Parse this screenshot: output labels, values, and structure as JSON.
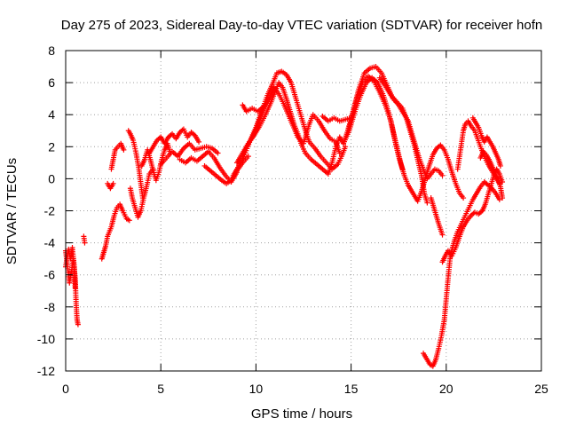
{
  "chart_data": {
    "type": "scatter",
    "title": "Day 275 of 2023, Sidereal Day-to-day VTEC variation (SDTVAR) for receiver hofn",
    "xlabel": "GPS time / hours",
    "ylabel": "SDTVAR / TECUs",
    "xlim": [
      0,
      25
    ],
    "ylim": [
      -12,
      8
    ],
    "x_ticks": [
      "0",
      "5",
      "10",
      "15",
      "20",
      "25"
    ],
    "y_ticks": [
      "-12",
      "-10",
      "-8",
      "-6",
      "-4",
      "-2",
      "0",
      "2",
      "4",
      "6",
      "8"
    ],
    "x_tick_values": [
      0,
      5,
      10,
      15,
      20,
      25
    ],
    "y_tick_values": [
      -12,
      -10,
      -8,
      -6,
      -4,
      -2,
      0,
      2,
      4,
      6,
      8
    ],
    "grid": true,
    "marker": "+",
    "series_color": "#ff0000",
    "tracks": [
      [
        [
          0.0,
          -4.5
        ],
        [
          0.1,
          -5.5
        ],
        [
          0.2,
          -6.5
        ],
        [
          0.3,
          -5.8
        ],
        [
          0.4,
          -5.0
        ],
        [
          0.5,
          -6.2
        ],
        [
          0.55,
          -7.8
        ],
        [
          0.6,
          -8.8
        ],
        [
          0.65,
          -9.1
        ]
      ],
      [
        [
          0.0,
          -5.5
        ],
        [
          0.15,
          -4.4
        ],
        [
          0.25,
          -5.0
        ],
        [
          0.35,
          -4.3
        ],
        [
          0.45,
          -5.5
        ],
        [
          0.5,
          -6.8
        ]
      ],
      [
        [
          0.95,
          -3.6
        ],
        [
          1.0,
          -4.0
        ]
      ],
      [
        [
          1.9,
          -5.0
        ],
        [
          2.0,
          -4.6
        ],
        [
          2.1,
          -4.2
        ],
        [
          2.2,
          -3.6
        ],
        [
          2.4,
          -3.0
        ],
        [
          2.55,
          -2.3
        ],
        [
          2.7,
          -1.8
        ],
        [
          2.85,
          -1.6
        ],
        [
          3.0,
          -2.0
        ],
        [
          3.2,
          -2.5
        ],
        [
          3.35,
          -2.6
        ]
      ],
      [
        [
          2.4,
          0.6
        ],
        [
          2.5,
          1.2
        ],
        [
          2.6,
          1.8
        ],
        [
          2.75,
          2.0
        ],
        [
          2.9,
          2.2
        ],
        [
          3.05,
          1.8
        ]
      ],
      [
        [
          2.2,
          -0.3
        ],
        [
          2.35,
          -0.6
        ],
        [
          2.5,
          -0.3
        ]
      ],
      [
        [
          3.3,
          3.0
        ],
        [
          3.4,
          2.8
        ],
        [
          3.55,
          2.4
        ],
        [
          3.7,
          1.6
        ],
        [
          3.85,
          0.6
        ],
        [
          3.95,
          -0.3
        ],
        [
          4.05,
          -1.2
        ]
      ],
      [
        [
          3.4,
          -0.6
        ],
        [
          3.5,
          -1.2
        ],
        [
          3.65,
          -1.8
        ],
        [
          3.8,
          -2.4
        ],
        [
          3.95,
          -2.0
        ],
        [
          4.1,
          -1.2
        ],
        [
          4.25,
          -0.5
        ],
        [
          4.4,
          0.3
        ],
        [
          4.6,
          0.6
        ]
      ],
      [
        [
          4.0,
          0.8
        ],
        [
          4.15,
          1.2
        ],
        [
          4.3,
          1.8
        ],
        [
          4.45,
          1.2
        ],
        [
          4.6,
          0.5
        ],
        [
          4.75,
          -0.1
        ],
        [
          4.9,
          0.4
        ],
        [
          5.05,
          1.2
        ],
        [
          5.2,
          1.8
        ],
        [
          5.35,
          2.2
        ],
        [
          5.5,
          1.6
        ]
      ],
      [
        [
          4.4,
          1.6
        ],
        [
          4.6,
          2.0
        ],
        [
          4.8,
          2.4
        ],
        [
          5.0,
          2.6
        ],
        [
          5.2,
          2.2
        ],
        [
          5.4,
          2.6
        ],
        [
          5.6,
          2.8
        ],
        [
          5.8,
          2.5
        ],
        [
          6.0,
          2.9
        ],
        [
          6.2,
          3.1
        ],
        [
          6.4,
          2.6
        ],
        [
          6.6,
          2.9
        ],
        [
          6.8,
          2.7
        ],
        [
          7.0,
          2.3
        ]
      ],
      [
        [
          5.0,
          0.9
        ],
        [
          5.3,
          1.3
        ],
        [
          5.6,
          1.7
        ],
        [
          5.9,
          1.4
        ],
        [
          6.2,
          1.9
        ],
        [
          6.5,
          2.2
        ],
        [
          6.8,
          1.8
        ],
        [
          7.1,
          1.9
        ],
        [
          7.4,
          2.0
        ],
        [
          7.7,
          1.9
        ],
        [
          8.0,
          1.6
        ]
      ],
      [
        [
          6.0,
          1.2
        ],
        [
          6.3,
          1.0
        ],
        [
          6.6,
          1.3
        ],
        [
          6.9,
          1.1
        ],
        [
          7.2,
          1.4
        ],
        [
          7.5,
          1.7
        ],
        [
          7.8,
          1.3
        ],
        [
          8.1,
          0.7
        ],
        [
          8.4,
          0.2
        ],
        [
          8.7,
          -0.2
        ],
        [
          9.0,
          0.4
        ]
      ],
      [
        [
          7.3,
          0.8
        ],
        [
          7.6,
          0.5
        ],
        [
          7.9,
          0.2
        ],
        [
          8.2,
          -0.1
        ],
        [
          8.45,
          -0.3
        ],
        [
          8.7,
          -0.1
        ],
        [
          9.0,
          0.5
        ],
        [
          9.3,
          1.0
        ],
        [
          9.6,
          1.4
        ]
      ],
      [
        [
          9.0,
          1.0
        ],
        [
          9.3,
          1.6
        ],
        [
          9.6,
          2.2
        ],
        [
          9.9,
          2.7
        ],
        [
          10.2,
          3.3
        ],
        [
          10.5,
          4.0
        ],
        [
          10.8,
          4.8
        ],
        [
          11.0,
          5.4
        ],
        [
          11.2,
          6.0
        ],
        [
          11.4,
          5.7
        ],
        [
          11.6,
          5.0
        ],
        [
          11.8,
          4.2
        ],
        [
          12.0,
          3.4
        ],
        [
          12.2,
          2.8
        ],
        [
          12.4,
          2.1
        ],
        [
          12.6,
          1.6
        ]
      ],
      [
        [
          8.8,
          0.2
        ],
        [
          9.1,
          0.8
        ],
        [
          9.4,
          1.5
        ],
        [
          9.7,
          2.4
        ],
        [
          10.0,
          3.2
        ],
        [
          10.3,
          4.2
        ],
        [
          10.6,
          5.2
        ],
        [
          10.9,
          6.0
        ],
        [
          11.1,
          6.6
        ],
        [
          11.35,
          6.7
        ],
        [
          11.6,
          6.5
        ],
        [
          11.85,
          6.0
        ],
        [
          12.1,
          5.0
        ],
        [
          12.35,
          4.0
        ],
        [
          12.6,
          3.0
        ],
        [
          12.8,
          2.3
        ]
      ],
      [
        [
          9.5,
          2.0
        ],
        [
          9.8,
          2.6
        ],
        [
          10.1,
          3.4
        ],
        [
          10.4,
          4.4
        ],
        [
          10.7,
          5.0
        ],
        [
          10.95,
          5.7
        ],
        [
          11.2,
          5.3
        ],
        [
          11.45,
          4.7
        ],
        [
          11.7,
          4.0
        ],
        [
          11.95,
          3.3
        ],
        [
          12.2,
          2.6
        ]
      ],
      [
        [
          9.3,
          4.6
        ],
        [
          9.5,
          4.2
        ],
        [
          9.8,
          4.4
        ],
        [
          10.1,
          4.2
        ],
        [
          10.4,
          4.5
        ],
        [
          10.6,
          4.8
        ]
      ],
      [
        [
          12.6,
          1.6
        ],
        [
          12.9,
          1.2
        ],
        [
          13.2,
          0.9
        ],
        [
          13.5,
          0.6
        ],
        [
          13.8,
          0.3
        ],
        [
          14.0,
          1.0
        ],
        [
          14.2,
          2.0
        ],
        [
          14.4,
          2.6
        ],
        [
          14.6,
          2.2
        ],
        [
          14.8,
          2.9
        ],
        [
          15.0,
          3.6
        ]
      ],
      [
        [
          12.8,
          2.3
        ],
        [
          13.1,
          1.9
        ],
        [
          13.4,
          1.4
        ],
        [
          13.7,
          1.0
        ],
        [
          14.0,
          0.6
        ],
        [
          14.3,
          0.9
        ],
        [
          14.5,
          1.4
        ],
        [
          14.7,
          2.0
        ]
      ],
      [
        [
          12.2,
          2.6
        ],
        [
          12.5,
          2.2
        ],
        [
          12.8,
          3.4
        ],
        [
          13.0,
          4.0
        ],
        [
          13.3,
          3.6
        ],
        [
          13.6,
          3.0
        ],
        [
          13.9,
          2.5
        ],
        [
          14.2,
          2.3
        ],
        [
          14.4,
          1.6
        ]
      ],
      [
        [
          13.5,
          3.9
        ],
        [
          13.8,
          3.6
        ],
        [
          14.1,
          3.8
        ],
        [
          14.4,
          3.6
        ],
        [
          14.7,
          3.7
        ],
        [
          15.0,
          3.8
        ]
      ],
      [
        [
          14.6,
          2.2
        ],
        [
          14.9,
          3.0
        ],
        [
          15.2,
          4.2
        ],
        [
          15.5,
          5.2
        ],
        [
          15.8,
          6.0
        ],
        [
          16.1,
          6.3
        ],
        [
          16.4,
          6.0
        ],
        [
          16.7,
          5.2
        ],
        [
          17.0,
          4.0
        ],
        [
          17.2,
          3.0
        ],
        [
          17.4,
          2.0
        ],
        [
          17.6,
          1.0
        ],
        [
          17.8,
          0.2
        ],
        [
          18.0,
          -0.4
        ]
      ],
      [
        [
          14.8,
          2.9
        ],
        [
          15.1,
          4.2
        ],
        [
          15.4,
          5.6
        ],
        [
          15.7,
          6.6
        ],
        [
          16.0,
          6.9
        ],
        [
          16.3,
          7.0
        ],
        [
          16.6,
          6.6
        ],
        [
          16.9,
          5.8
        ],
        [
          17.2,
          5.0
        ],
        [
          17.5,
          4.6
        ],
        [
          17.8,
          4.0
        ],
        [
          18.0,
          3.6
        ]
      ],
      [
        [
          15.0,
          3.6
        ],
        [
          15.3,
          5.0
        ],
        [
          15.6,
          6.0
        ],
        [
          15.9,
          6.4
        ],
        [
          16.2,
          6.1
        ],
        [
          16.5,
          5.4
        ],
        [
          16.8,
          4.6
        ],
        [
          17.1,
          3.6
        ],
        [
          17.3,
          2.4
        ],
        [
          17.5,
          1.4
        ],
        [
          17.7,
          0.6
        ]
      ],
      [
        [
          16.5,
          6.3
        ],
        [
          16.8,
          5.8
        ],
        [
          17.1,
          5.2
        ],
        [
          17.4,
          4.8
        ],
        [
          17.7,
          4.4
        ],
        [
          17.9,
          3.8
        ],
        [
          18.1,
          3.0
        ],
        [
          18.3,
          2.2
        ],
        [
          18.5,
          1.2
        ],
        [
          18.7,
          0.2
        ],
        [
          18.85,
          -0.9
        ],
        [
          19.0,
          -1.5
        ]
      ],
      [
        [
          18.0,
          -0.4
        ],
        [
          18.3,
          -1.0
        ],
        [
          18.5,
          -1.4
        ],
        [
          18.7,
          -0.8
        ],
        [
          18.9,
          0.0
        ],
        [
          19.1,
          0.8
        ],
        [
          19.3,
          1.5
        ],
        [
          19.5,
          1.9
        ],
        [
          19.7,
          2.1
        ],
        [
          19.9,
          1.8
        ],
        [
          20.1,
          1.2
        ],
        [
          20.3,
          0.4
        ],
        [
          20.5,
          -0.3
        ],
        [
          20.7,
          -0.9
        ],
        [
          20.9,
          -1.2
        ]
      ],
      [
        [
          18.0,
          3.6
        ],
        [
          18.2,
          2.8
        ],
        [
          18.4,
          2.0
        ],
        [
          18.6,
          1.2
        ],
        [
          18.8,
          0.6
        ],
        [
          19.0,
          0.0
        ],
        [
          19.2,
          0.3
        ],
        [
          19.4,
          0.6
        ],
        [
          19.6,
          0.5
        ],
        [
          19.8,
          0.2
        ]
      ],
      [
        [
          18.8,
          -10.9
        ],
        [
          19.0,
          -11.3
        ],
        [
          19.15,
          -11.6
        ],
        [
          19.3,
          -11.7
        ],
        [
          19.45,
          -11.3
        ],
        [
          19.6,
          -10.6
        ],
        [
          19.75,
          -9.8
        ],
        [
          19.9,
          -8.8
        ],
        [
          20.0,
          -7.5
        ],
        [
          20.1,
          -6.2
        ],
        [
          20.2,
          -5.0
        ],
        [
          20.3,
          -4.4
        ],
        [
          20.45,
          -3.8
        ],
        [
          20.6,
          -3.3
        ],
        [
          20.8,
          -2.8
        ],
        [
          21.0,
          -2.3
        ],
        [
          21.2,
          -1.8
        ],
        [
          21.4,
          -1.3
        ],
        [
          21.6,
          -0.9
        ],
        [
          21.8,
          -0.5
        ],
        [
          22.0,
          -0.2
        ],
        [
          22.2,
          -0.4
        ],
        [
          22.4,
          -0.6
        ],
        [
          22.6,
          -0.9
        ],
        [
          22.8,
          -1.3
        ]
      ],
      [
        [
          19.8,
          -5.2
        ],
        [
          19.95,
          -4.8
        ],
        [
          20.1,
          -4.5
        ],
        [
          20.3,
          -4.8
        ],
        [
          20.5,
          -4.3
        ],
        [
          20.7,
          -3.6
        ],
        [
          20.9,
          -3.0
        ],
        [
          21.1,
          -2.6
        ],
        [
          21.3,
          -2.3
        ],
        [
          21.5,
          -2.1
        ],
        [
          21.7,
          -2.2
        ],
        [
          21.9,
          -2.0
        ]
      ],
      [
        [
          19.2,
          -1.2
        ],
        [
          19.4,
          -2.0
        ],
        [
          19.6,
          -2.8
        ],
        [
          19.8,
          -3.5
        ]
      ],
      [
        [
          20.6,
          0.6
        ],
        [
          20.7,
          1.4
        ],
        [
          20.8,
          2.2
        ],
        [
          20.9,
          3.0
        ],
        [
          21.0,
          3.4
        ],
        [
          21.15,
          3.6
        ],
        [
          21.3,
          3.3
        ],
        [
          21.5,
          3.0
        ],
        [
          21.65,
          2.5
        ],
        [
          21.8,
          2.0
        ],
        [
          22.0,
          1.4
        ],
        [
          22.2,
          0.9
        ],
        [
          22.4,
          0.5
        ],
        [
          22.6,
          0.1
        ],
        [
          22.8,
          -0.3
        ]
      ],
      [
        [
          21.4,
          3.8
        ],
        [
          21.55,
          3.5
        ],
        [
          21.7,
          3.2
        ],
        [
          21.85,
          2.7
        ],
        [
          22.0,
          2.3
        ],
        [
          22.15,
          2.6
        ],
        [
          22.3,
          2.3
        ],
        [
          22.45,
          2.0
        ],
        [
          22.6,
          1.6
        ],
        [
          22.75,
          1.2
        ],
        [
          22.85,
          0.8
        ]
      ],
      [
        [
          21.8,
          1.3
        ],
        [
          21.95,
          1.7
        ],
        [
          22.1,
          1.5
        ],
        [
          22.25,
          1.2
        ],
        [
          22.4,
          0.8
        ],
        [
          22.55,
          0.4
        ],
        [
          22.7,
          0.0
        ],
        [
          22.85,
          -0.5
        ],
        [
          22.95,
          -1.2
        ]
      ],
      [
        [
          21.9,
          -2.0
        ],
        [
          22.05,
          -1.6
        ],
        [
          22.2,
          -1.0
        ],
        [
          22.35,
          -0.4
        ],
        [
          22.5,
          0.2
        ],
        [
          22.65,
          0.6
        ],
        [
          22.8,
          0.3
        ],
        [
          22.95,
          -0.2
        ]
      ]
    ]
  }
}
